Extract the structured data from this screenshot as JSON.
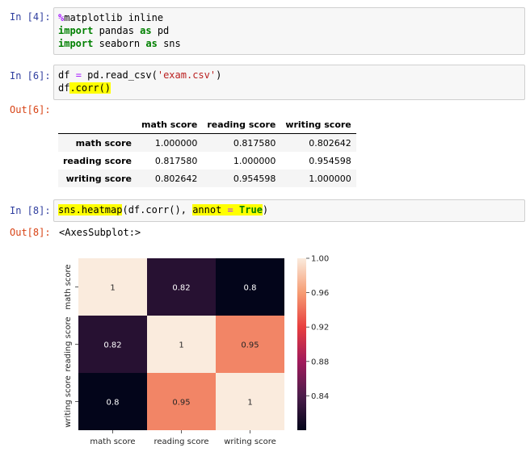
{
  "cells": [
    {
      "prompt": "In [4]:",
      "lines": [
        "%matplotlib inline",
        "import pandas as pd",
        "import seaborn as sns"
      ]
    },
    {
      "prompt": "In [6]:",
      "lines": [
        "df = pd.read_csv('exam.csv')",
        "df.corr()"
      ]
    },
    {
      "prompt": "In [8]:",
      "lines": [
        "sns.heatmap(df.corr(), annot = True)"
      ]
    }
  ],
  "outputs": [
    {
      "prompt": "Out[6]:"
    },
    {
      "prompt": "Out[8]:",
      "text": "<AxesSubplot:>"
    }
  ],
  "table": {
    "columns": [
      "",
      "math score",
      "reading score",
      "writing score"
    ],
    "rows": [
      {
        "label": "math score",
        "values": [
          "1.000000",
          "0.817580",
          "0.802642"
        ]
      },
      {
        "label": "reading score",
        "values": [
          "0.817580",
          "1.000000",
          "0.954598"
        ]
      },
      {
        "label": "writing score",
        "values": [
          "0.802642",
          "0.954598",
          "1.000000"
        ]
      }
    ]
  },
  "chart_data": {
    "type": "heatmap",
    "x": [
      "math score",
      "reading score",
      "writing score"
    ],
    "y": [
      "math score",
      "reading score",
      "writing score"
    ],
    "values": [
      [
        1.0,
        0.82,
        0.8
      ],
      [
        0.82,
        1.0,
        0.95
      ],
      [
        0.8,
        0.95,
        1.0
      ]
    ],
    "annotations": [
      [
        "1",
        "0.82",
        "0.8"
      ],
      [
        "0.82",
        "1",
        "0.95"
      ],
      [
        "0.8",
        "0.95",
        "1"
      ]
    ],
    "colorbar": {
      "ticks": [
        "1.00",
        "0.96",
        "0.92",
        "0.88",
        "0.84"
      ],
      "tick_values": [
        1.0,
        0.96,
        0.92,
        0.88,
        0.84
      ],
      "range": [
        0.8,
        1.0
      ]
    },
    "colormap": [
      "#03051a",
      "#4c1d4b",
      "#a11a5b",
      "#e83f3f",
      "#f69c73",
      "#faebdd"
    ]
  }
}
